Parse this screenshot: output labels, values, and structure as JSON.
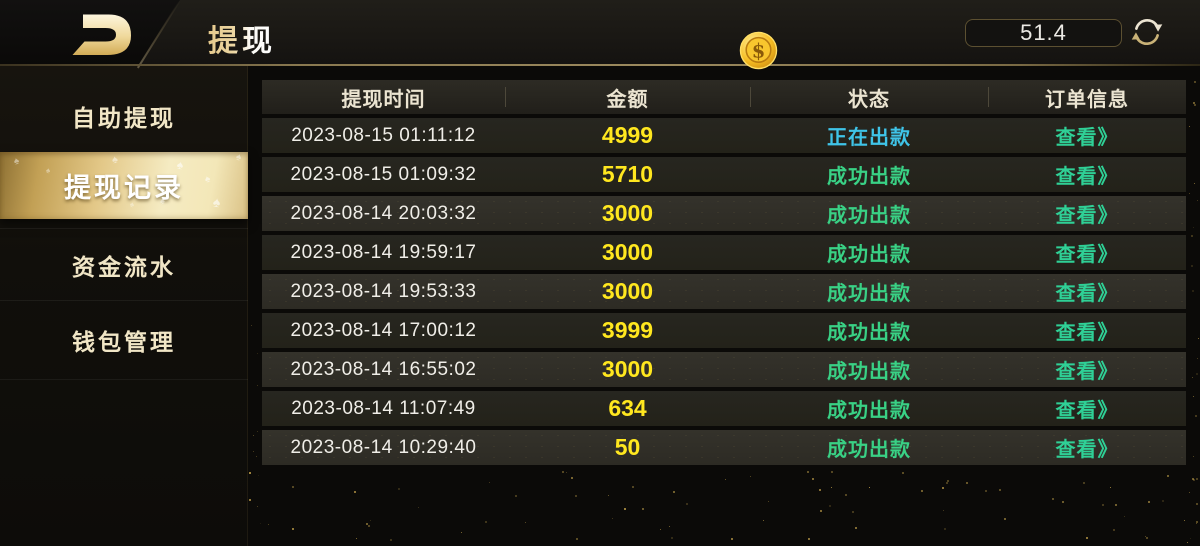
{
  "colors": {
    "accent_gold": "#e3c888",
    "amount_yellow": "#ffe71f",
    "status_processing_cyan": "#3fc4e8",
    "status_success_green": "#39d185",
    "link_teal": "#2fd096",
    "header_line_gold": "#9c8a5e"
  },
  "topbar": {
    "title": "提现",
    "logo_icon": "app-logo-gold-d",
    "coin_icon": "gold-dollar-coin",
    "balance": "51.4",
    "refresh_icon": "refresh-arrows"
  },
  "sidebar": {
    "items": [
      {
        "label": "自助提现",
        "selected": false
      },
      {
        "label": "提现记录",
        "selected": true
      },
      {
        "label": "资金流水",
        "selected": false
      },
      {
        "label": "钱包管理",
        "selected": false
      }
    ]
  },
  "table": {
    "columns": [
      "提现时间",
      "金额",
      "状态",
      "订单信息"
    ],
    "rows": [
      {
        "time": "2023-08-15 01:11:12",
        "amount": "4999",
        "status": "正在出款",
        "status_type": "processing",
        "action": "查看》"
      },
      {
        "time": "2023-08-15 01:09:32",
        "amount": "5710",
        "status": "成功出款",
        "status_type": "success",
        "action": "查看》"
      },
      {
        "time": "2023-08-14 20:03:32",
        "amount": "3000",
        "status": "成功出款",
        "status_type": "success",
        "action": "查看》"
      },
      {
        "time": "2023-08-14 19:59:17",
        "amount": "3000",
        "status": "成功出款",
        "status_type": "success",
        "action": "查看》"
      },
      {
        "time": "2023-08-14 19:53:33",
        "amount": "3000",
        "status": "成功出款",
        "status_type": "success",
        "action": "查看》"
      },
      {
        "time": "2023-08-14 17:00:12",
        "amount": "3999",
        "status": "成功出款",
        "status_type": "success",
        "action": "查看》"
      },
      {
        "time": "2023-08-14 16:55:02",
        "amount": "3000",
        "status": "成功出款",
        "status_type": "success",
        "action": "查看》"
      },
      {
        "time": "2023-08-14 11:07:49",
        "amount": "634",
        "status": "成功出款",
        "status_type": "success",
        "action": "查看》"
      },
      {
        "time": "2023-08-14 10:29:40",
        "amount": "50",
        "status": "成功出款",
        "status_type": "success",
        "action": "查看》"
      }
    ]
  }
}
